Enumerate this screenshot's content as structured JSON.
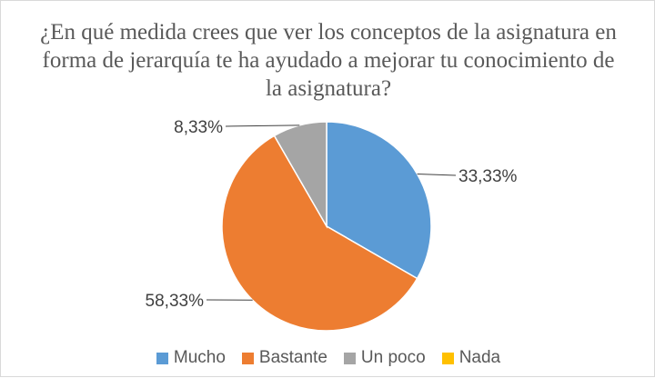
{
  "chart_data": {
    "type": "pie",
    "title": "¿En qué medida crees que ver los conceptos de la asignatura en forma de jerarquía te ha ayudado a mejorar tu conocimiento de la asignatura?",
    "categories": [
      "Mucho",
      "Bastante",
      "Un poco",
      "Nada"
    ],
    "values": [
      33.33,
      58.33,
      8.33,
      0
    ],
    "data_labels": [
      "33,33%",
      "58,33%",
      "8,33%",
      ""
    ],
    "colors": [
      "#5b9bd5",
      "#ed7d31",
      "#a5a5a5",
      "#ffc000"
    ],
    "legend_position": "bottom"
  }
}
